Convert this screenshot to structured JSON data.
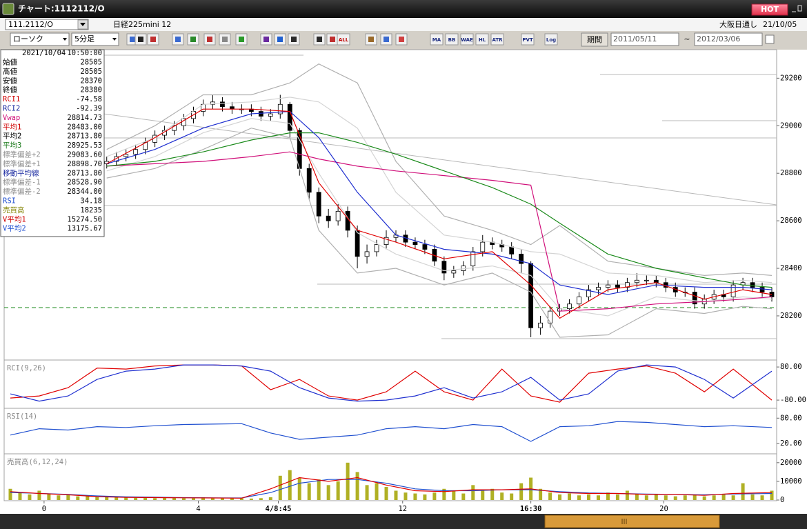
{
  "window": {
    "title": "チャート:1112112/O",
    "hot": "HOT"
  },
  "toolbar": {
    "symbol": "111.2112/O",
    "instrument": "日経225mini 12",
    "session": "大阪日通し",
    "date": "21/10/05",
    "chart_kind": "ローソク",
    "interval": "5分足",
    "period_button": "期間",
    "period_from": "2011/05/11",
    "period_sep": "~",
    "period_to": "2012/03/06",
    "buttons": [
      "ALL",
      "MA",
      "BB",
      "WAE",
      "HL",
      "ATR",
      "PVT",
      "Log"
    ]
  },
  "info_panel": {
    "date": "2021/10/04",
    "time": "10:50:00",
    "rows": [
      {
        "label": "始値",
        "value": "28505",
        "color": "#000000"
      },
      {
        "label": "高値",
        "value": "28505",
        "color": "#000000"
      },
      {
        "label": "安値",
        "value": "28370",
        "color": "#000000"
      },
      {
        "label": "終値",
        "value": "28380",
        "color": "#000000"
      },
      {
        "label": "RCI1",
        "value": "-74.58",
        "color": "#d00000"
      },
      {
        "label": "RCI2",
        "value": "-92.39",
        "color": "#1a2aa0"
      },
      {
        "label": "Vwap",
        "value": "28814.73",
        "color": "#d0107a"
      },
      {
        "label": "平均1",
        "value": "28483.00",
        "color": "#d00000"
      },
      {
        "label": "平均2",
        "value": "28713.80",
        "color": "#000000"
      },
      {
        "label": "平均3",
        "value": "28925.53",
        "color": "#1a7a1a"
      },
      {
        "label": "標準偏差+2",
        "value": "29083.60",
        "color": "#909090"
      },
      {
        "label": "標準偏差+1",
        "value": "28898.70",
        "color": "#909090"
      },
      {
        "label": "移動平均線",
        "value": "28713.80",
        "color": "#1a2aa0"
      },
      {
        "label": "標準偏差-1",
        "value": "28528.90",
        "color": "#909090"
      },
      {
        "label": "標準偏差-2",
        "value": "28344.00",
        "color": "#909090"
      },
      {
        "label": "RSI",
        "value": "34.18",
        "color": "#2050d0"
      },
      {
        "label": "売買高",
        "value": "18235",
        "color": "#8a8a10"
      },
      {
        "label": "V平均1",
        "value": "15274.50",
        "color": "#d00000"
      },
      {
        "label": "V平均2",
        "value": "13175.67",
        "color": "#2050d0"
      }
    ]
  },
  "chart_data": [
    {
      "type": "candlestick",
      "up_color": "#ffffff",
      "down_color": "#000000",
      "xlim": [
        -10.5,
        69.5
      ],
      "ylim": [
        28020,
        29320
      ],
      "yticks": [
        29200,
        29000,
        28800,
        28600,
        28400,
        28200
      ],
      "x": [
        0,
        1,
        2,
        3,
        4,
        5,
        6,
        7,
        8,
        9,
        10,
        11,
        12,
        13,
        14,
        15,
        16,
        17,
        18,
        19,
        20,
        21,
        22,
        23,
        24,
        25,
        26,
        27,
        28,
        29,
        30,
        31,
        32,
        33,
        34,
        35,
        36,
        37,
        38,
        39,
        40,
        41,
        42,
        43,
        44,
        45,
        46,
        47,
        48,
        49,
        50,
        51,
        52,
        53,
        54,
        55,
        56,
        57,
        58,
        59,
        60,
        61,
        62,
        63,
        64,
        65,
        66,
        67,
        68,
        69
      ],
      "open": [
        28840,
        28850,
        28870,
        28880,
        28900,
        28930,
        28960,
        28980,
        29000,
        29030,
        29060,
        29090,
        29100,
        29080,
        29070,
        29070,
        29060,
        29040,
        29050,
        29090,
        28980,
        28820,
        28720,
        28620,
        28600,
        28640,
        28560,
        28450,
        28470,
        28500,
        28530,
        28540,
        28510,
        28500,
        28480,
        28430,
        28380,
        28390,
        28410,
        28470,
        28510,
        28500,
        28490,
        28460,
        28420,
        28150,
        28170,
        28220,
        28230,
        28250,
        28280,
        28310,
        28320,
        28330,
        28320,
        28340,
        28350,
        28350,
        28340,
        28320,
        28300,
        28300,
        28250,
        28270,
        28290,
        28280,
        28330,
        28340,
        28320,
        28300
      ],
      "high": [
        28870,
        28890,
        28900,
        28920,
        28950,
        28980,
        29000,
        29020,
        29050,
        29080,
        29110,
        29130,
        29120,
        29100,
        29090,
        29090,
        29080,
        29070,
        29130,
        29100,
        28990,
        28840,
        28740,
        28650,
        28670,
        28660,
        28580,
        28500,
        28520,
        28560,
        28560,
        28560,
        28530,
        28520,
        28500,
        28450,
        28410,
        28430,
        28490,
        28540,
        28530,
        28520,
        28510,
        28480,
        28430,
        28200,
        28240,
        28250,
        28270,
        28300,
        28330,
        28340,
        28350,
        28350,
        28360,
        28380,
        28370,
        28370,
        28360,
        28340,
        28320,
        28320,
        28290,
        28310,
        28310,
        28350,
        28360,
        28360,
        28340,
        28320
      ],
      "low": [
        28820,
        28830,
        28850,
        28860,
        28880,
        28910,
        28940,
        28960,
        28980,
        29010,
        29040,
        29070,
        29060,
        29050,
        29050,
        29040,
        29020,
        29020,
        29030,
        28950,
        28790,
        28690,
        28590,
        28570,
        28580,
        28530,
        28400,
        28420,
        28450,
        28480,
        28510,
        28490,
        28480,
        28460,
        28410,
        28350,
        28360,
        28370,
        28390,
        28450,
        28480,
        28470,
        28440,
        28380,
        28110,
        28120,
        28150,
        28200,
        28210,
        28230,
        28260,
        28290,
        28300,
        28300,
        28300,
        28320,
        28330,
        28320,
        28300,
        28280,
        28280,
        28230,
        28230,
        28250,
        28260,
        28260,
        28310,
        28300,
        28280,
        28260
      ],
      "close": [
        28850,
        28870,
        28880,
        28900,
        28930,
        28960,
        28980,
        29000,
        29030,
        29060,
        29090,
        29100,
        29080,
        29070,
        29070,
        29060,
        29040,
        29050,
        29090,
        28980,
        28820,
        28720,
        28620,
        28600,
        28640,
        28560,
        28450,
        28470,
        28500,
        28530,
        28540,
        28510,
        28500,
        28480,
        28430,
        28380,
        28390,
        28410,
        28470,
        28510,
        28500,
        28490,
        28460,
        28420,
        28150,
        28170,
        28220,
        28230,
        28250,
        28280,
        28310,
        28320,
        28330,
        28320,
        28340,
        28350,
        28350,
        28340,
        28320,
        28300,
        28300,
        28250,
        28270,
        28290,
        28280,
        28330,
        28340,
        28320,
        28300,
        28280
      ],
      "overlays": {
        "x": [
          0,
          5,
          10,
          15,
          19,
          22,
          26,
          30,
          35,
          40,
          44,
          47,
          52,
          57,
          62,
          66,
          69
        ],
        "series": [
          {
            "color": "#b0b0b0",
            "values": [
              28900,
              29000,
              29130,
              29130,
              29180,
              29260,
              29180,
              28850,
              28620,
              28560,
              28500,
              28580,
              28430,
              28400,
              28370,
              28380,
              28370
            ]
          },
          {
            "color": "#b0b0b0",
            "values": [
              28780,
              28820,
              28900,
              28990,
              28950,
              28560,
              28380,
              28400,
              28330,
              28380,
              28300,
              28110,
              28120,
              28230,
              28210,
              28240,
              28230
            ]
          },
          {
            "color": "#d4d4d4",
            "values": [
              28870,
              28950,
              29090,
              29100,
              29120,
              29100,
              28990,
              28720,
              28540,
              28510,
              28470,
              28460,
              28380,
              28370,
              28340,
              28350,
              28340
            ]
          },
          {
            "color": "#d4d4d4",
            "values": [
              28810,
              28870,
              28970,
              29030,
              29010,
              28800,
              28550,
              28460,
              28390,
              28410,
              28370,
              28230,
              28200,
              28280,
              28260,
              28280,
              28270
            ]
          },
          {
            "color": "#d0107a",
            "values": [
              28830,
              28840,
              28850,
              28870,
              28890,
              28860,
              28830,
              28810,
              28790,
              28770,
              28750,
              28220,
              28230,
              28250,
              28260,
              28270,
              28280
            ]
          },
          {
            "color": "#1a8a1a",
            "values": [
              28830,
              28850,
              28890,
              28940,
              28970,
              28970,
              28930,
              28880,
              28810,
              28740,
              28670,
              28590,
              28460,
              28400,
              28360,
              28330,
              28320
            ]
          },
          {
            "color": "#1f2fd0",
            "values": [
              28840,
              28900,
              28990,
              29050,
              29060,
              28950,
              28720,
              28540,
              28480,
              28460,
              28420,
              28330,
              28290,
              28330,
              28320,
              28320,
              28310
            ]
          },
          {
            "color": "#e00000",
            "values": [
              28840,
              28950,
              29070,
              29070,
              29060,
              28760,
              28560,
              28510,
              28440,
              28470,
              28330,
              28190,
              28310,
              28340,
              28270,
              28310,
              28290
            ]
          }
        ]
      }
    },
    {
      "type": "line",
      "title": "RCI(9,26)",
      "xlim": [
        -10.5,
        69.5
      ],
      "ylim": [
        -113,
        107
      ],
      "yticks": [
        {
          "value": 80,
          "label": "80.00"
        },
        {
          "value": -80,
          "label": "-80.00"
        }
      ],
      "x": [
        -10,
        -7,
        -4,
        -1,
        2,
        5,
        8,
        11,
        14,
        17,
        20,
        23,
        26,
        29,
        32,
        35,
        38,
        41,
        44,
        47,
        50,
        53,
        56,
        59,
        62,
        65,
        69
      ],
      "series": [
        {
          "color": "#e00000",
          "values": [
            -70,
            -60,
            -20,
            75,
            70,
            85,
            90,
            90,
            85,
            -30,
            20,
            -60,
            -80,
            -40,
            60,
            -40,
            -80,
            70,
            -60,
            -90,
            50,
            70,
            85,
            50,
            -40,
            70,
            -80
          ]
        },
        {
          "color": "#1f2fd0",
          "values": [
            -50,
            -85,
            -60,
            20,
            60,
            70,
            90,
            90,
            85,
            60,
            -20,
            -70,
            -85,
            -80,
            -60,
            -20,
            -70,
            -40,
            30,
            -80,
            -50,
            60,
            90,
            80,
            20,
            -70,
            60
          ]
        }
      ]
    },
    {
      "type": "line",
      "title": "RSI(14)",
      "xlim": [
        -10.5,
        69.5
      ],
      "ylim": [
        -1,
        100
      ],
      "yticks": [
        {
          "value": 80,
          "label": "80.00"
        },
        {
          "value": 20,
          "label": "20.00"
        }
      ],
      "x": [
        -10,
        -7,
        -4,
        -1,
        2,
        5,
        8,
        11,
        14,
        17,
        20,
        23,
        26,
        29,
        32,
        35,
        38,
        41,
        44,
        47,
        50,
        53,
        56,
        59,
        62,
        65,
        69
      ],
      "series": [
        {
          "color": "#2050d0",
          "values": [
            40,
            55,
            52,
            60,
            58,
            62,
            65,
            66,
            67,
            45,
            30,
            35,
            40,
            55,
            60,
            55,
            65,
            60,
            25,
            60,
            62,
            72,
            70,
            65,
            60,
            62,
            58
          ]
        }
      ]
    },
    {
      "type": "bar",
      "title": "売買高(6,12,24)",
      "color": "#b0b024",
      "xlim": [
        -10.5,
        69.5
      ],
      "ylim": [
        0,
        24000
      ],
      "yticks": [
        20000,
        10000,
        0
      ],
      "xticks": [
        {
          "value": -6.5,
          "label": "0"
        },
        {
          "value": 9.5,
          "label": "4"
        },
        {
          "value": 17.8,
          "label": "4/8:45"
        },
        {
          "value": 30.7,
          "label": "12"
        },
        {
          "value": 44,
          "label": "16:30"
        },
        {
          "value": 57.8,
          "label": "20"
        }
      ],
      "x": [
        -10,
        -9,
        -8,
        -7,
        -6,
        -5,
        -4,
        -3,
        -2,
        -1,
        0,
        1,
        2,
        3,
        4,
        5,
        6,
        7,
        8,
        9,
        10,
        11,
        12,
        13,
        14,
        15,
        16,
        17,
        18,
        19,
        20,
        21,
        22,
        23,
        24,
        25,
        26,
        27,
        28,
        29,
        30,
        31,
        32,
        33,
        34,
        35,
        36,
        37,
        38,
        39,
        40,
        41,
        42,
        43,
        44,
        45,
        46,
        47,
        48,
        49,
        50,
        51,
        52,
        53,
        54,
        55,
        56,
        57,
        58,
        59,
        60,
        61,
        62,
        63,
        64,
        65,
        66,
        67,
        68,
        69
      ],
      "values": [
        6000,
        4000,
        3000,
        5000,
        3500,
        2500,
        3000,
        2000,
        2500,
        1500,
        2000,
        1500,
        1800,
        1200,
        1500,
        1000,
        1400,
        1200,
        1000,
        1300,
        1500,
        1200,
        1000,
        1200,
        900,
        800,
        1000,
        1500,
        13000,
        16000,
        12000,
        9000,
        11000,
        8000,
        10000,
        20000,
        15000,
        8000,
        9000,
        7000,
        5000,
        4000,
        3500,
        3000,
        4000,
        6000,
        5000,
        3500,
        8000,
        5000,
        6000,
        4000,
        3500,
        9000,
        12000,
        6000,
        4000,
        3000,
        3500,
        2500,
        3000,
        2500,
        4000,
        3000,
        5000,
        3500,
        2500,
        3000,
        2500,
        2000,
        2500,
        3000,
        2000,
        2500,
        3000,
        2500,
        9000,
        3000,
        2500,
        5000
      ],
      "overlays": {
        "x": [
          -10,
          -7,
          -4,
          -1,
          2,
          5,
          8,
          11,
          14,
          17,
          20,
          23,
          26,
          29,
          32,
          35,
          38,
          41,
          44,
          47,
          50,
          53,
          56,
          59,
          62,
          65,
          69
        ],
        "series": [
          {
            "color": "#2050d0",
            "values": [
              4000,
              3600,
              3000,
              2200,
              1700,
              1500,
              1300,
              1200,
              1100,
              4000,
              9000,
              11000,
              11000,
              9000,
              6000,
              5000,
              5000,
              5500,
              5500,
              4500,
              3800,
              3500,
              3200,
              3000,
              2800,
              3200,
              3500
            ]
          },
          {
            "color": "#e00000",
            "values": [
              4500,
              3500,
              2800,
              1800,
              1400,
              1300,
              1200,
              1100,
              1000,
              6000,
              12000,
              10000,
              12000,
              8000,
              5000,
              4500,
              5500,
              5500,
              6000,
              4000,
              3500,
              3500,
              3000,
              3000,
              2500,
              3500,
              4000
            ]
          }
        ]
      }
    }
  ]
}
